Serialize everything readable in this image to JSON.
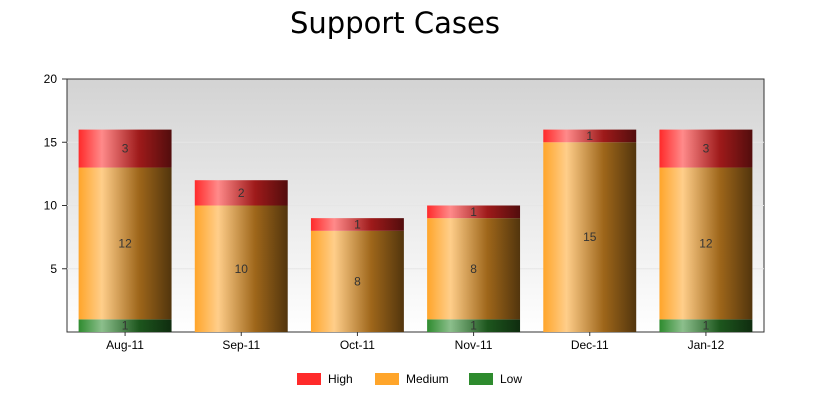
{
  "chart_data": {
    "type": "bar",
    "stacked": true,
    "title": "Support Cases",
    "xlabel": "",
    "ylabel": "",
    "categories": [
      "Aug-11",
      "Sep-11",
      "Oct-11",
      "Nov-11",
      "Dec-11",
      "Jan-12"
    ],
    "series": [
      {
        "name": "Low",
        "values": [
          1,
          0,
          0,
          1,
          0,
          1
        ],
        "color": "#2e8b2e"
      },
      {
        "name": "Medium",
        "values": [
          12,
          10,
          8,
          8,
          15,
          12
        ],
        "color": "#ffa52a"
      },
      {
        "name": "High",
        "values": [
          3,
          2,
          1,
          1,
          1,
          3
        ],
        "color": "#ff2a2a"
      }
    ],
    "legend_order": [
      "High",
      "Medium",
      "Low"
    ],
    "ylim": [
      0,
      20
    ],
    "yticks": [
      5,
      10,
      15,
      20
    ],
    "grid": true,
    "legend_position": "bottom"
  }
}
